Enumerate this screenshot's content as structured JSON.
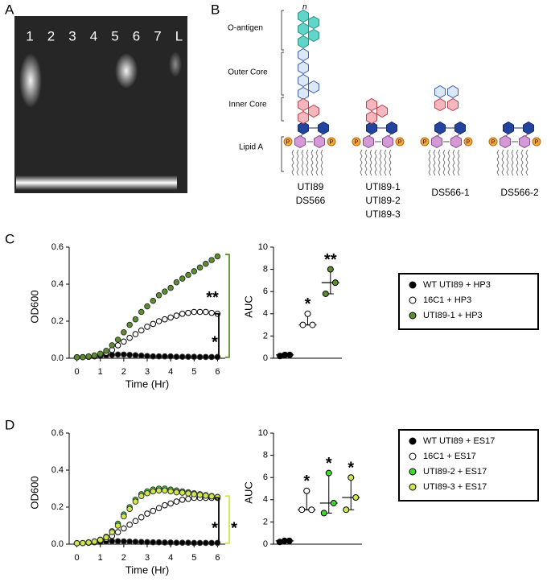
{
  "gel": {
    "label": "A",
    "lanes": [
      "1",
      "2",
      "3",
      "4",
      "5",
      "6",
      "7",
      "L"
    ]
  },
  "diagram": {
    "label": "B",
    "repeat": "n",
    "layers": [
      "O-antigen",
      "Outer Core",
      "Inner Core",
      "Lipid A"
    ],
    "strains": [
      [
        "UTI89",
        "DS566"
      ],
      [
        "UTI89-1",
        "UTI89-2",
        "UTI89-3"
      ],
      [
        "DS566-1"
      ],
      [
        "DS566-2"
      ]
    ]
  },
  "chart_data": [
    {
      "type": "scatter",
      "panel": "C",
      "xlabel": "Time (Hr)",
      "ylabel": "OD600",
      "x": [
        0,
        0.25,
        0.5,
        0.75,
        1,
        1.25,
        1.5,
        1.75,
        2,
        2.25,
        2.5,
        2.75,
        3,
        3.25,
        3.5,
        3.75,
        4,
        4.25,
        4.5,
        4.75,
        5,
        5.25,
        5.5,
        5.75,
        6
      ],
      "xlim": [
        -0.33,
        6.33
      ],
      "xticks": [
        0,
        1,
        2,
        3,
        4,
        5,
        6
      ],
      "ylim": [
        0,
        0.6
      ],
      "yticks": [
        {
          "value": 0,
          "label": "0.0"
        },
        0.2,
        0.4,
        0.6
      ],
      "legend": "right",
      "series": [
        {
          "name": "WT UTI89 + HP3",
          "color": "#000000",
          "values": [
            0.005,
            0.006,
            0.008,
            0.01,
            0.012,
            0.015,
            0.018,
            0.02,
            0.02,
            0.018,
            0.016,
            0.014,
            0.012,
            0.01,
            0.01,
            0.01,
            0.01,
            0.008,
            0.008,
            0.008,
            0.008,
            0.007,
            0.007,
            0.007,
            0.007
          ]
        },
        {
          "name": "16C1 + HP3",
          "color": "#ffffff",
          "values": [
            0.005,
            0.006,
            0.008,
            0.012,
            0.02,
            0.03,
            0.045,
            0.07,
            0.09,
            0.11,
            0.13,
            0.15,
            0.17,
            0.185,
            0.2,
            0.21,
            0.22,
            0.23,
            0.24,
            0.245,
            0.25,
            0.25,
            0.25,
            0.245,
            0.24
          ]
        },
        {
          "name": "UTI89-1 + HP3",
          "color": "#5a8f2c",
          "values": [
            0.005,
            0.006,
            0.01,
            0.015,
            0.025,
            0.04,
            0.07,
            0.1,
            0.14,
            0.18,
            0.21,
            0.25,
            0.28,
            0.31,
            0.34,
            0.36,
            0.38,
            0.41,
            0.43,
            0.45,
            0.47,
            0.49,
            0.51,
            0.53,
            0.55
          ]
        }
      ],
      "annotations": [
        "**",
        "*"
      ]
    },
    {
      "type": "dot",
      "ylabel": "AUC",
      "ylim": [
        0,
        10
      ],
      "yticks": [
        0,
        2,
        4,
        6,
        8,
        10
      ],
      "groups": [
        {
          "color": "#000000",
          "values": [
            0.2,
            0.3,
            0.3
          ],
          "median": 0.3
        },
        {
          "color": "#ffffff",
          "values": [
            3,
            3,
            4
          ],
          "median": 3,
          "annotation": "*"
        },
        {
          "color": "#5a8f2c",
          "values": [
            5.8,
            6.8,
            8
          ],
          "median": 6.8,
          "annotation": "**"
        }
      ]
    },
    {
      "type": "scatter",
      "panel": "D",
      "xlabel": "Time (Hr)",
      "ylabel": "OD600",
      "x": [
        0,
        0.25,
        0.5,
        0.75,
        1,
        1.25,
        1.5,
        1.75,
        2,
        2.25,
        2.5,
        2.75,
        3,
        3.25,
        3.5,
        3.75,
        4,
        4.25,
        4.5,
        4.75,
        5,
        5.25,
        5.5,
        5.75,
        6
      ],
      "xlim": [
        -0.33,
        6.33
      ],
      "xticks": [
        0,
        1,
        2,
        3,
        4,
        5,
        6
      ],
      "ylim": [
        0,
        0.6
      ],
      "yticks": [
        {
          "value": 0,
          "label": "0.0"
        },
        0.2,
        0.4,
        0.6
      ],
      "legend": "right",
      "series": [
        {
          "name": "WT UTI89 + ES17",
          "color": "#000000",
          "values": [
            0.005,
            0.006,
            0.008,
            0.01,
            0.012,
            0.014,
            0.016,
            0.016,
            0.015,
            0.014,
            0.013,
            0.012,
            0.011,
            0.01,
            0.01,
            0.009,
            0.009,
            0.008,
            0.008,
            0.008,
            0.007,
            0.007,
            0.007,
            0.007,
            0.007
          ]
        },
        {
          "name": "16C1 + ES17",
          "color": "#ffffff",
          "values": [
            0.005,
            0.006,
            0.008,
            0.012,
            0.02,
            0.03,
            0.045,
            0.065,
            0.085,
            0.105,
            0.125,
            0.145,
            0.165,
            0.18,
            0.195,
            0.21,
            0.22,
            0.23,
            0.24,
            0.245,
            0.25,
            0.25,
            0.25,
            0.25,
            0.25
          ]
        },
        {
          "name": "UTI89-2 + ES17",
          "color": "#3fdc2c",
          "values": [
            0.005,
            0.006,
            0.01,
            0.015,
            0.025,
            0.04,
            0.07,
            0.11,
            0.16,
            0.2,
            0.24,
            0.27,
            0.285,
            0.295,
            0.3,
            0.3,
            0.295,
            0.29,
            0.285,
            0.28,
            0.275,
            0.27,
            0.265,
            0.26,
            0.255
          ]
        },
        {
          "name": "UTI89-3 + ES17",
          "color": "#cfe84c",
          "values": [
            0.005,
            0.006,
            0.009,
            0.014,
            0.023,
            0.037,
            0.065,
            0.1,
            0.15,
            0.19,
            0.23,
            0.26,
            0.275,
            0.285,
            0.29,
            0.29,
            0.285,
            0.28,
            0.278,
            0.274,
            0.27,
            0.266,
            0.262,
            0.258,
            0.254
          ]
        }
      ],
      "annotations": [
        "*",
        "*"
      ]
    },
    {
      "type": "dot",
      "ylabel": "AUC",
      "ylim": [
        0,
        10
      ],
      "yticks": [
        0,
        2,
        4,
        6,
        8,
        10
      ],
      "groups": [
        {
          "color": "#000000",
          "values": [
            0.2,
            0.3,
            0.3
          ],
          "median": 0.3
        },
        {
          "color": "#ffffff",
          "values": [
            3.1,
            3.1,
            4.8
          ],
          "median": 3.1,
          "annotation": "*"
        },
        {
          "color": "#3fdc2c",
          "values": [
            2.8,
            3.7,
            6.4
          ],
          "median": 3.7,
          "annotation": "*"
        },
        {
          "color": "#cfe84c",
          "values": [
            3.1,
            4.2,
            6
          ],
          "median": 4.2,
          "annotation": "*"
        }
      ]
    }
  ]
}
